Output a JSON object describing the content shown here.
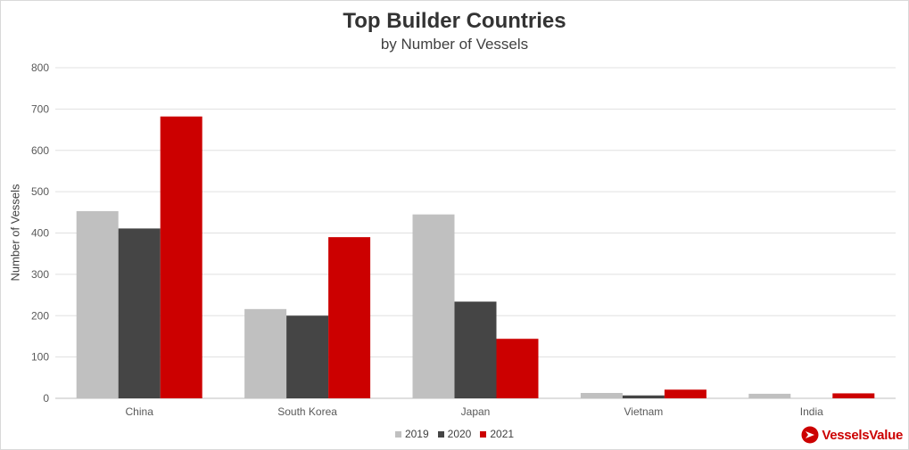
{
  "chart_data": {
    "type": "bar",
    "title": "Top Builder Countries",
    "subtitle": "by Number of Vessels",
    "ylabel": "Number of Vessels",
    "xlabel": "",
    "ylim": [
      0,
      800
    ],
    "yticks": [
      0,
      100,
      200,
      300,
      400,
      500,
      600,
      700,
      800
    ],
    "grid": true,
    "legend_position": "bottom",
    "categories": [
      "China",
      "South Korea",
      "Japan",
      "Vietnam",
      "India"
    ],
    "series": [
      {
        "name": "2019",
        "color": "#c0c0c0",
        "values": [
          453,
          216,
          445,
          13,
          11
        ]
      },
      {
        "name": "2020",
        "color": "#454545",
        "values": [
          411,
          200,
          234,
          7,
          0
        ]
      },
      {
        "name": "2021",
        "color": "#cc0000",
        "values": [
          682,
          390,
          144,
          21,
          12
        ]
      }
    ]
  },
  "brand": {
    "name": "VesselsValue",
    "icon": "vesselsvalue-logo-icon",
    "color": "#cc0000"
  }
}
